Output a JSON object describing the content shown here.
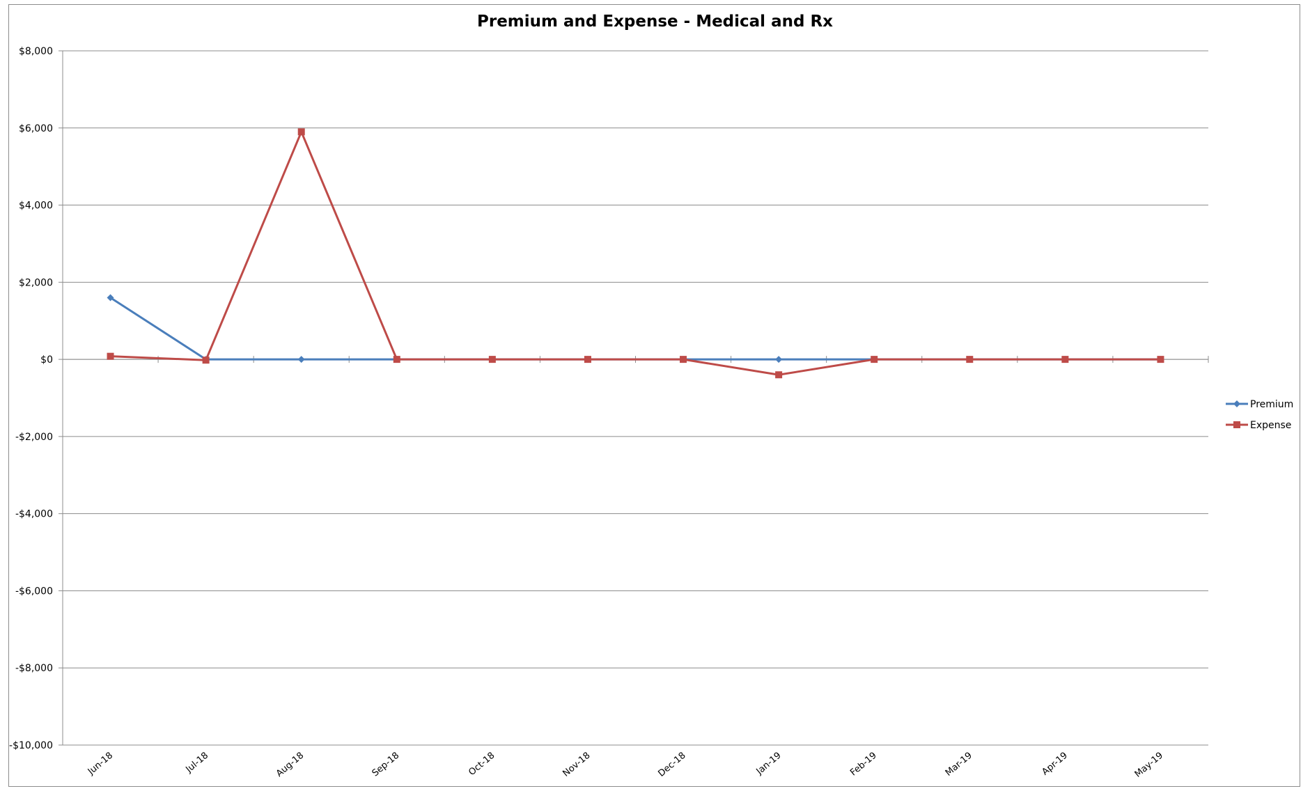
{
  "chart_data": {
    "type": "line",
    "title": "Premium and Expense - Medical and Rx",
    "xlabel": "",
    "ylabel": "",
    "categories": [
      "Jun-18",
      "Jul-18",
      "Aug-18",
      "Sep-18",
      "Oct-18",
      "Nov-18",
      "Dec-18",
      "Jan-19",
      "Feb-19",
      "Mar-19",
      "Apr-19",
      "May-19"
    ],
    "ylim": [
      -10000,
      8000
    ],
    "ytick_values": [
      8000,
      6000,
      4000,
      2000,
      0,
      -2000,
      -4000,
      -6000,
      -8000,
      -10000
    ],
    "ytick_labels": [
      "$8,000",
      "$6,000",
      "$4,000",
      "$2,000",
      "$0",
      "-$2,000",
      "-$4,000",
      "-$6,000",
      "-$8,000",
      "-$10,000"
    ],
    "grid": true,
    "legend_position": "right",
    "series": [
      {
        "name": "Premium",
        "color": "#4a7ebb",
        "marker": "diamond",
        "values": [
          1600,
          0,
          0,
          0,
          0,
          0,
          0,
          0,
          0,
          0,
          0,
          0
        ]
      },
      {
        "name": "Expense",
        "color": "#be4b48",
        "marker": "square",
        "values": [
          80,
          -20,
          5900,
          0,
          0,
          0,
          0,
          -400,
          0,
          0,
          0,
          0
        ]
      }
    ]
  }
}
